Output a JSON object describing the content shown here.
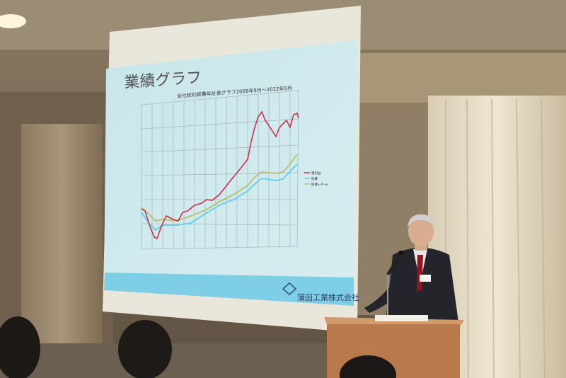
{
  "slide": {
    "title": "業績グラフ",
    "chart_title": "全社総利経費年計表グラフ2008年9月～2022年9月",
    "legend": [
      "粗利益",
      "経費",
      "経費+ネ+α"
    ],
    "company_logo": "蒲田工業株式会社",
    "colors": {
      "series_1": "#c8324a",
      "series_2": "#6fd0e8",
      "series_3": "#b9c27a",
      "background": "#cfe9ec",
      "footer": "#7ecfe6"
    }
  },
  "scene": {
    "description_tags": [
      "presenter",
      "podium",
      "microphone",
      "projector-screen",
      "curtains",
      "audience"
    ]
  }
}
